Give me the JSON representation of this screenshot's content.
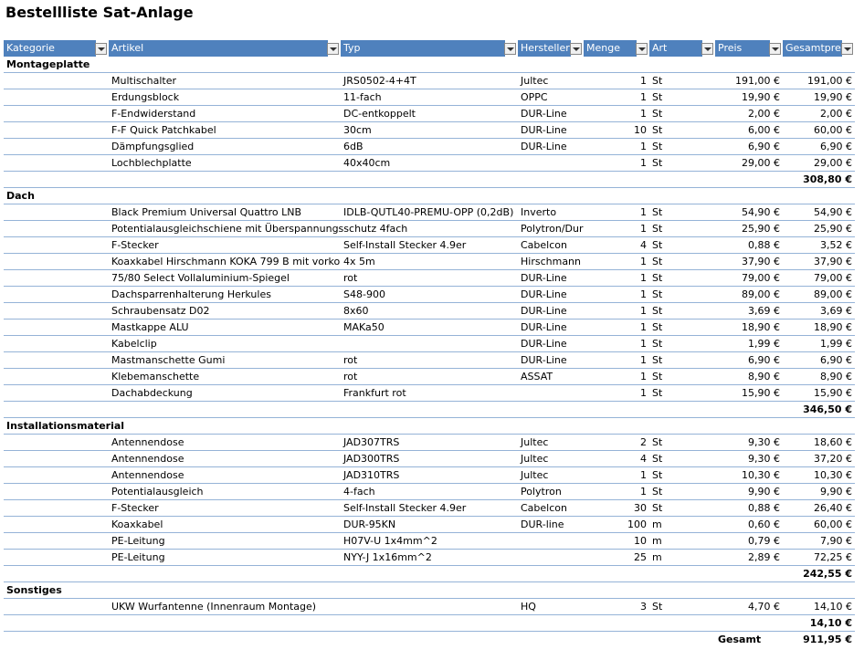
{
  "header": {
    "title": "Bestellliste Sat-Anlage"
  },
  "table": {
    "columns": [
      "Kategorie",
      "Artikel",
      "Typ",
      "Hersteller",
      "Menge",
      "Art",
      "Preis",
      "Gesamtpreis"
    ],
    "sections": [
      {
        "name": "Montageplatte",
        "items": [
          {
            "artikel": "Multischalter",
            "typ": "JRS0502-4+4T",
            "hersteller": "Jultec",
            "menge": 1,
            "art": "St",
            "preis": "191,00 €",
            "gesamt": "191,00 €"
          },
          {
            "artikel": "Erdungsblock",
            "typ": "11-fach",
            "hersteller": "OPPC",
            "menge": 1,
            "art": "St",
            "preis": "19,90 €",
            "gesamt": "19,90 €"
          },
          {
            "artikel": "F-Endwiderstand",
            "typ": "DC-entkoppelt",
            "hersteller": "DUR-Line",
            "menge": 1,
            "art": "St",
            "preis": "2,00 €",
            "gesamt": "2,00 €"
          },
          {
            "artikel": "F-F Quick Patchkabel",
            "typ": "30cm",
            "hersteller": "DUR-Line",
            "menge": 10,
            "art": "St",
            "preis": "6,00 €",
            "gesamt": "60,00 €"
          },
          {
            "artikel": "Dämpfungsglied",
            "typ": "6dB",
            "hersteller": "DUR-Line",
            "menge": 1,
            "art": "St",
            "preis": "6,90 €",
            "gesamt": "6,90 €"
          },
          {
            "artikel": "Lochblechplatte",
            "typ": "40x40cm",
            "menge": 1,
            "art": "St",
            "preis": "29,00 €",
            "gesamt": "29,00 €"
          }
        ],
        "subtotal": "308,80 €"
      },
      {
        "name": "Dach",
        "items": [
          {
            "artikel": "Black Premium Universal Quattro LNB",
            "typ": "IDLB-QUTL40-PREMU-OPP (0,2dB)",
            "hersteller": "Inverto",
            "menge": 1,
            "art": "St",
            "preis": "54,90 €",
            "gesamt": "54,90 €"
          },
          {
            "artikel": "Potentialausgleichschiene mit Überspannungsschutz 4fach",
            "hersteller": "Polytron/Dur",
            "menge": 1,
            "art": "St",
            "preis": "25,90 €",
            "gesamt": "25,90 €"
          },
          {
            "artikel": "F-Stecker",
            "typ": "Self-Install Stecker 4.9er",
            "hersteller": "Cabelcon",
            "menge": 4,
            "art": "St",
            "preis": "0,88 €",
            "gesamt": "3,52 €"
          },
          {
            "artikel": "Koaxkabel Hirschmann KOKA 799 B mit vorko",
            "typ": "4x 5m",
            "hersteller": "Hirschmann",
            "menge": 1,
            "art": "St",
            "preis": "37,90 €",
            "gesamt": "37,90 €"
          },
          {
            "artikel": "75/80 Select Vollaluminium-Spiegel",
            "typ": "rot",
            "hersteller": "DUR-Line",
            "menge": 1,
            "art": "St",
            "preis": "79,00 €",
            "gesamt": "79,00 €"
          },
          {
            "artikel": "Dachsparrenhalterung Herkules",
            "typ": "S48-900",
            "hersteller": "DUR-Line",
            "menge": 1,
            "art": "St",
            "preis": "89,00 €",
            "gesamt": "89,00 €"
          },
          {
            "artikel": "Schraubensatz D02",
            "typ": "8x60",
            "hersteller": "DUR-Line",
            "menge": 1,
            "art": "St",
            "preis": "3,69 €",
            "gesamt": "3,69 €"
          },
          {
            "artikel": "Mastkappe ALU",
            "typ": "MAKa50",
            "hersteller": "DUR-Line",
            "menge": 1,
            "art": "St",
            "preis": "18,90 €",
            "gesamt": "18,90 €"
          },
          {
            "artikel": "Kabelclip",
            "hersteller": "DUR-Line",
            "menge": 1,
            "art": "St",
            "preis": "1,99 €",
            "gesamt": "1,99 €"
          },
          {
            "artikel": "Mastmanschette Gumi",
            "typ": "rot",
            "hersteller": "DUR-Line",
            "menge": 1,
            "art": "St",
            "preis": "6,90 €",
            "gesamt": "6,90 €"
          },
          {
            "artikel": "Klebemanschette",
            "typ": "rot",
            "hersteller": "ASSAT",
            "menge": 1,
            "art": "St",
            "preis": "8,90 €",
            "gesamt": "8,90 €"
          },
          {
            "artikel": "Dachabdeckung",
            "typ": "Frankfurt rot",
            "menge": 1,
            "art": "St",
            "preis": "15,90 €",
            "gesamt": "15,90 €"
          }
        ],
        "subtotal": "346,50 €"
      },
      {
        "name": "Installationsmaterial",
        "items": [
          {
            "artikel": "Antennendose",
            "typ": "JAD307TRS",
            "hersteller": "Jultec",
            "menge": 2,
            "art": "St",
            "preis": "9,30 €",
            "gesamt": "18,60 €"
          },
          {
            "artikel": "Antennendose",
            "typ": "JAD300TRS",
            "hersteller": "Jultec",
            "menge": 4,
            "art": "St",
            "preis": "9,30 €",
            "gesamt": "37,20 €"
          },
          {
            "artikel": "Antennendose",
            "typ": "JAD310TRS",
            "hersteller": "Jultec",
            "menge": 1,
            "art": "St",
            "preis": "10,30 €",
            "gesamt": "10,30 €"
          },
          {
            "artikel": "Potentialausgleich",
            "typ": "4-fach",
            "hersteller": "Polytron",
            "menge": 1,
            "art": "St",
            "preis": "9,90 €",
            "gesamt": "9,90 €"
          },
          {
            "artikel": "F-Stecker",
            "typ": "Self-Install Stecker 4.9er",
            "hersteller": "Cabelcon",
            "menge": 30,
            "art": "St",
            "preis": "0,88 €",
            "gesamt": "26,40 €"
          },
          {
            "artikel": "Koaxkabel",
            "typ": "DUR-95KN",
            "hersteller": "DUR-line",
            "menge": 100,
            "art": "m",
            "preis": "0,60 €",
            "gesamt": "60,00 €"
          },
          {
            "artikel": "PE-Leitung",
            "typ": "H07V-U 1x4mm^2",
            "menge": 10,
            "art": "m",
            "preis": "0,79 €",
            "gesamt": "7,90 €"
          },
          {
            "artikel": "PE-Leitung",
            "typ": "NYY-J 1x16mm^2",
            "menge": 25,
            "art": "m",
            "preis": "2,89 €",
            "gesamt": "72,25 €"
          }
        ],
        "subtotal": "242,55 €"
      },
      {
        "name": "Sonstiges",
        "items": [
          {
            "artikel": "UKW Wurfantenne (Innenraum Montage)",
            "hersteller": "HQ",
            "menge": 3,
            "art": "St",
            "preis": "4,70 €",
            "gesamt": "14,10 €"
          }
        ],
        "subtotal": "14,10 €"
      }
    ],
    "total_label": "Gesamt",
    "total": "911,95 €"
  }
}
